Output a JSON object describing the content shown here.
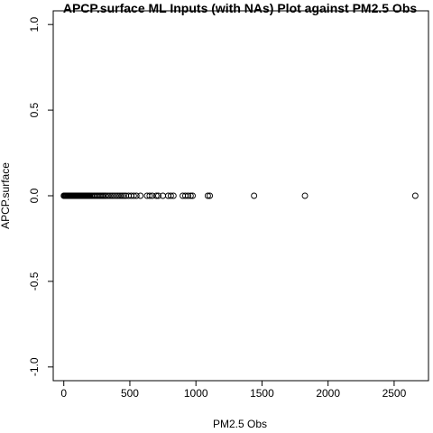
{
  "chart_data": {
    "type": "scatter",
    "title": "APCP.surface ML Inputs (with NAs) Plot against PM2.5 Obs",
    "xlabel": "PM2.5 Obs",
    "ylabel": "APCP.surface",
    "xlim": [
      -80,
      2760
    ],
    "ylim": [
      -1.08,
      1.08
    ],
    "x_ticks": [
      0,
      500,
      1000,
      1500,
      2000,
      2500
    ],
    "x_tick_labels": [
      "0",
      "500",
      "1000",
      "1500",
      "2000",
      "2500"
    ],
    "y_ticks": [
      -1.0,
      -0.5,
      0.0,
      0.5,
      1.0
    ],
    "y_tick_labels": [
      "-1.0",
      "-0.5",
      "0.0",
      "0.5",
      "1.0"
    ],
    "grid": false,
    "marker": "open-circle",
    "points": [
      {
        "x": 0,
        "y": 0
      },
      {
        "x": 5,
        "y": 0
      },
      {
        "x": 10,
        "y": 0
      },
      {
        "x": 15,
        "y": 0
      },
      {
        "x": 20,
        "y": 0
      },
      {
        "x": 25,
        "y": 0
      },
      {
        "x": 30,
        "y": 0
      },
      {
        "x": 35,
        "y": 0
      },
      {
        "x": 40,
        "y": 0
      },
      {
        "x": 45,
        "y": 0
      },
      {
        "x": 50,
        "y": 0
      },
      {
        "x": 55,
        "y": 0
      },
      {
        "x": 60,
        "y": 0
      },
      {
        "x": 65,
        "y": 0
      },
      {
        "x": 70,
        "y": 0
      },
      {
        "x": 75,
        "y": 0
      },
      {
        "x": 80,
        "y": 0
      },
      {
        "x": 85,
        "y": 0
      },
      {
        "x": 90,
        "y": 0
      },
      {
        "x": 95,
        "y": 0
      },
      {
        "x": 100,
        "y": 0
      },
      {
        "x": 105,
        "y": 0
      },
      {
        "x": 110,
        "y": 0
      },
      {
        "x": 115,
        "y": 0
      },
      {
        "x": 120,
        "y": 0
      },
      {
        "x": 125,
        "y": 0
      },
      {
        "x": 130,
        "y": 0
      },
      {
        "x": 135,
        "y": 0
      },
      {
        "x": 140,
        "y": 0
      },
      {
        "x": 145,
        "y": 0
      },
      {
        "x": 150,
        "y": 0
      },
      {
        "x": 155,
        "y": 0
      },
      {
        "x": 160,
        "y": 0
      },
      {
        "x": 165,
        "y": 0
      },
      {
        "x": 170,
        "y": 0
      },
      {
        "x": 175,
        "y": 0
      },
      {
        "x": 180,
        "y": 0
      },
      {
        "x": 185,
        "y": 0
      },
      {
        "x": 190,
        "y": 0
      },
      {
        "x": 195,
        "y": 0
      },
      {
        "x": 200,
        "y": 0
      },
      {
        "x": 210,
        "y": 0
      },
      {
        "x": 220,
        "y": 0
      },
      {
        "x": 230,
        "y": 0
      },
      {
        "x": 240,
        "y": 0
      },
      {
        "x": 250,
        "y": 0
      },
      {
        "x": 260,
        "y": 0
      },
      {
        "x": 270,
        "y": 0
      },
      {
        "x": 280,
        "y": 0
      },
      {
        "x": 290,
        "y": 0
      },
      {
        "x": 300,
        "y": 0
      },
      {
        "x": 310,
        "y": 0
      },
      {
        "x": 320,
        "y": 0
      },
      {
        "x": 335,
        "y": 0
      },
      {
        "x": 350,
        "y": 0
      },
      {
        "x": 365,
        "y": 0
      },
      {
        "x": 380,
        "y": 0
      },
      {
        "x": 395,
        "y": 0
      },
      {
        "x": 410,
        "y": 0
      },
      {
        "x": 425,
        "y": 0
      },
      {
        "x": 440,
        "y": 0
      },
      {
        "x": 455,
        "y": 0
      },
      {
        "x": 470,
        "y": 0
      },
      {
        "x": 490,
        "y": 0
      },
      {
        "x": 510,
        "y": 0
      },
      {
        "x": 530,
        "y": 0
      },
      {
        "x": 550,
        "y": 0
      },
      {
        "x": 580,
        "y": 0
      },
      {
        "x": 630,
        "y": 0
      },
      {
        "x": 650,
        "y": 0
      },
      {
        "x": 670,
        "y": 0
      },
      {
        "x": 700,
        "y": 0
      },
      {
        "x": 715,
        "y": 0
      },
      {
        "x": 750,
        "y": 0
      },
      {
        "x": 790,
        "y": 0
      },
      {
        "x": 810,
        "y": 0
      },
      {
        "x": 830,
        "y": 0
      },
      {
        "x": 900,
        "y": 0
      },
      {
        "x": 920,
        "y": 0
      },
      {
        "x": 940,
        "y": 0
      },
      {
        "x": 960,
        "y": 0
      },
      {
        "x": 975,
        "y": 0
      },
      {
        "x": 1090,
        "y": 0
      },
      {
        "x": 1105,
        "y": 0
      },
      {
        "x": 1440,
        "y": 0
      },
      {
        "x": 1825,
        "y": 0
      },
      {
        "x": 2660,
        "y": 0
      }
    ]
  }
}
